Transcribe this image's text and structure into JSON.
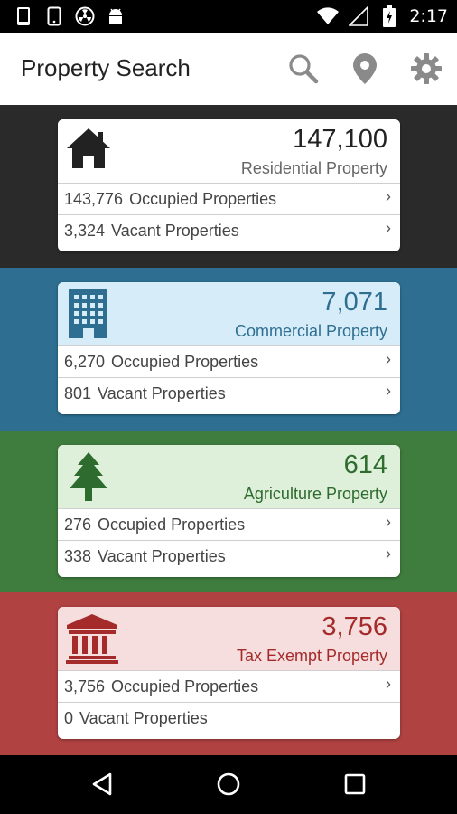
{
  "status_bar": {
    "time": "2:17",
    "left_icons": [
      "phone-icon",
      "phone-outline-icon",
      "radiation-icon",
      "android-icon"
    ],
    "right_icons": [
      "wifi-icon",
      "signal-icon",
      "battery-icon"
    ]
  },
  "app_bar": {
    "title": "Property Search",
    "actions": [
      "search-icon",
      "location-pin-icon",
      "settings-gear-icon"
    ]
  },
  "sections": [
    {
      "key": "residential",
      "color": "#2a2a2a",
      "icon": "house-icon",
      "count": "147,100",
      "label": "Residential Property",
      "rows": [
        {
          "num": "143,776",
          "label": "Occupied Properties",
          "chevron": "›"
        },
        {
          "num": "3,324",
          "label": "Vacant Properties",
          "chevron": "›"
        }
      ]
    },
    {
      "key": "commercial",
      "color": "#2e6f91",
      "icon": "office-building-icon",
      "count": "7,071",
      "label": "Commercial Property",
      "rows": [
        {
          "num": "6,270",
          "label": "Occupied Properties",
          "chevron": "›"
        },
        {
          "num": "801",
          "label": "Vacant Properties",
          "chevron": "›"
        }
      ]
    },
    {
      "key": "agriculture",
      "color": "#3f7d3f",
      "icon": "pine-tree-icon",
      "count": "614",
      "label": "Agriculture Property",
      "rows": [
        {
          "num": "276",
          "label": "Occupied Properties",
          "chevron": "›"
        },
        {
          "num": "338",
          "label": "Vacant Properties",
          "chevron": "›"
        }
      ]
    },
    {
      "key": "tax_exempt",
      "color": "#b04242",
      "icon": "government-building-icon",
      "count": "3,756",
      "label": "Tax Exempt Property",
      "rows": [
        {
          "num": "3,756",
          "label": "Occupied Properties",
          "chevron": "›"
        },
        {
          "num": "0",
          "label": "Vacant Properties",
          "chevron": ""
        }
      ]
    }
  ],
  "nav_bar": {
    "buttons": [
      "back-icon",
      "home-icon",
      "recents-icon"
    ]
  }
}
